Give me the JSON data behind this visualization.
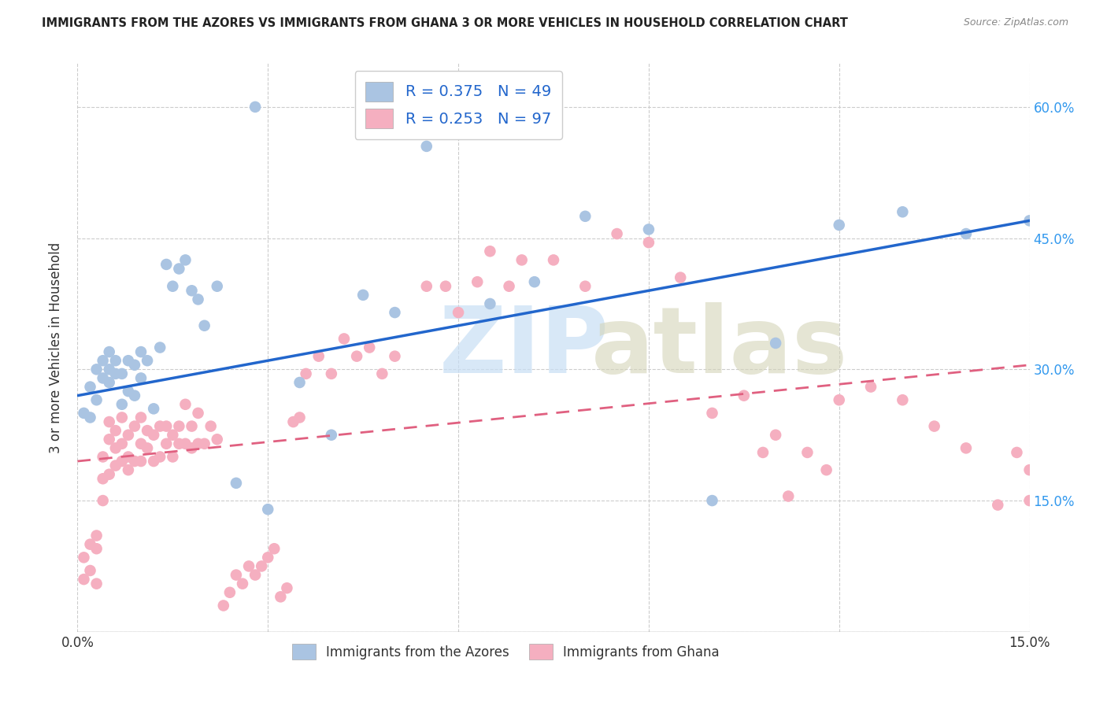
{
  "title": "IMMIGRANTS FROM THE AZORES VS IMMIGRANTS FROM GHANA 3 OR MORE VEHICLES IN HOUSEHOLD CORRELATION CHART",
  "source": "Source: ZipAtlas.com",
  "ylabel": "3 or more Vehicles in Household",
  "xmin": 0.0,
  "xmax": 0.15,
  "ymin": 0.0,
  "ymax": 0.65,
  "azores_R": 0.375,
  "azores_N": 49,
  "ghana_R": 0.253,
  "ghana_N": 97,
  "azores_color": "#aac4e2",
  "ghana_color": "#f5afc0",
  "azores_line_color": "#2266cc",
  "ghana_line_color": "#e06080",
  "legend_label_azores": "Immigrants from the Azores",
  "legend_label_ghana": "Immigrants from Ghana",
  "azores_line_x0": 0.0,
  "azores_line_y0": 0.27,
  "azores_line_x1": 0.15,
  "azores_line_y1": 0.47,
  "ghana_line_x0": 0.0,
  "ghana_line_y0": 0.195,
  "ghana_line_x1": 0.15,
  "ghana_line_y1": 0.305,
  "azores_x": [
    0.001,
    0.002,
    0.002,
    0.003,
    0.003,
    0.004,
    0.004,
    0.005,
    0.005,
    0.005,
    0.006,
    0.006,
    0.007,
    0.007,
    0.008,
    0.008,
    0.009,
    0.009,
    0.01,
    0.01,
    0.011,
    0.012,
    0.013,
    0.014,
    0.015,
    0.016,
    0.017,
    0.018,
    0.019,
    0.02,
    0.022,
    0.025,
    0.028,
    0.03,
    0.035,
    0.04,
    0.045,
    0.05,
    0.055,
    0.065,
    0.072,
    0.08,
    0.09,
    0.1,
    0.11,
    0.12,
    0.13,
    0.14,
    0.15
  ],
  "azores_y": [
    0.25,
    0.245,
    0.28,
    0.265,
    0.3,
    0.29,
    0.31,
    0.285,
    0.3,
    0.32,
    0.295,
    0.31,
    0.26,
    0.295,
    0.275,
    0.31,
    0.27,
    0.305,
    0.29,
    0.32,
    0.31,
    0.255,
    0.325,
    0.42,
    0.395,
    0.415,
    0.425,
    0.39,
    0.38,
    0.35,
    0.395,
    0.17,
    0.6,
    0.14,
    0.285,
    0.225,
    0.385,
    0.365,
    0.555,
    0.375,
    0.4,
    0.475,
    0.46,
    0.15,
    0.33,
    0.465,
    0.48,
    0.455,
    0.47
  ],
  "ghana_x": [
    0.001,
    0.001,
    0.002,
    0.002,
    0.003,
    0.003,
    0.003,
    0.004,
    0.004,
    0.004,
    0.005,
    0.005,
    0.005,
    0.006,
    0.006,
    0.006,
    0.007,
    0.007,
    0.007,
    0.008,
    0.008,
    0.008,
    0.009,
    0.009,
    0.01,
    0.01,
    0.01,
    0.011,
    0.011,
    0.012,
    0.012,
    0.013,
    0.013,
    0.014,
    0.014,
    0.015,
    0.015,
    0.016,
    0.016,
    0.017,
    0.017,
    0.018,
    0.018,
    0.019,
    0.019,
    0.02,
    0.021,
    0.022,
    0.023,
    0.024,
    0.025,
    0.026,
    0.027,
    0.028,
    0.029,
    0.03,
    0.031,
    0.032,
    0.033,
    0.034,
    0.035,
    0.036,
    0.038,
    0.04,
    0.042,
    0.044,
    0.046,
    0.048,
    0.05,
    0.055,
    0.058,
    0.06,
    0.063,
    0.065,
    0.068,
    0.07,
    0.075,
    0.08,
    0.085,
    0.09,
    0.095,
    0.1,
    0.105,
    0.108,
    0.11,
    0.112,
    0.115,
    0.118,
    0.12,
    0.125,
    0.13,
    0.135,
    0.14,
    0.145,
    0.148,
    0.15,
    0.15
  ],
  "ghana_y": [
    0.085,
    0.06,
    0.1,
    0.07,
    0.055,
    0.095,
    0.11,
    0.15,
    0.175,
    0.2,
    0.18,
    0.22,
    0.24,
    0.19,
    0.21,
    0.23,
    0.195,
    0.215,
    0.245,
    0.185,
    0.2,
    0.225,
    0.195,
    0.235,
    0.195,
    0.215,
    0.245,
    0.21,
    0.23,
    0.195,
    0.225,
    0.2,
    0.235,
    0.215,
    0.235,
    0.2,
    0.225,
    0.215,
    0.235,
    0.215,
    0.26,
    0.21,
    0.235,
    0.215,
    0.25,
    0.215,
    0.235,
    0.22,
    0.03,
    0.045,
    0.065,
    0.055,
    0.075,
    0.065,
    0.075,
    0.085,
    0.095,
    0.04,
    0.05,
    0.24,
    0.245,
    0.295,
    0.315,
    0.295,
    0.335,
    0.315,
    0.325,
    0.295,
    0.315,
    0.395,
    0.395,
    0.365,
    0.4,
    0.435,
    0.395,
    0.425,
    0.425,
    0.395,
    0.455,
    0.445,
    0.405,
    0.25,
    0.27,
    0.205,
    0.225,
    0.155,
    0.205,
    0.185,
    0.265,
    0.28,
    0.265,
    0.235,
    0.21,
    0.145,
    0.205,
    0.185,
    0.15
  ]
}
